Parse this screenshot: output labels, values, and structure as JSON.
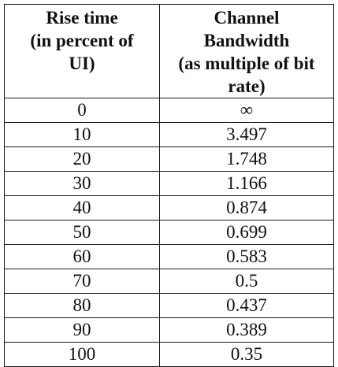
{
  "table": {
    "headers": [
      {
        "lines": [
          "Rise time",
          "(in percent of",
          "UI)"
        ]
      },
      {
        "lines": [
          "Channel",
          "Bandwidth",
          "(as multiple of bit",
          "rate)"
        ]
      }
    ],
    "rows": [
      {
        "rise": "0",
        "bandwidth": "∞"
      },
      {
        "rise": "10",
        "bandwidth": "3.497"
      },
      {
        "rise": "20",
        "bandwidth": "1.748"
      },
      {
        "rise": "30",
        "bandwidth": "1.166"
      },
      {
        "rise": "40",
        "bandwidth": "0.874"
      },
      {
        "rise": "50",
        "bandwidth": "0.699"
      },
      {
        "rise": "60",
        "bandwidth": "0.583"
      },
      {
        "rise": "70",
        "bandwidth": "0.5"
      },
      {
        "rise": "80",
        "bandwidth": "0.437"
      },
      {
        "rise": "90",
        "bandwidth": "0.389"
      },
      {
        "rise": "100",
        "bandwidth": "0.35"
      }
    ]
  }
}
